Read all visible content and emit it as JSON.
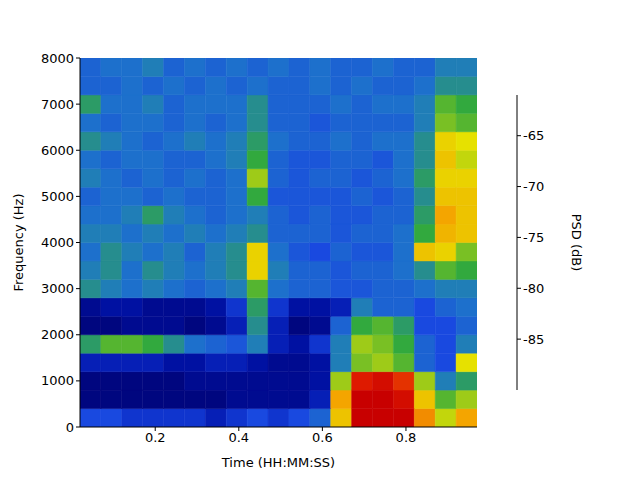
{
  "chart_data": {
    "type": "heatmap",
    "xlabel": "Time (HH:MM:SS)",
    "ylabel": "Frequency (Hz)",
    "xlim": [
      0.02,
      0.97
    ],
    "xticks": [
      0.2,
      0.4,
      0.6,
      0.8
    ],
    "ylim": [
      0,
      8000
    ],
    "yticks": [
      0,
      1000,
      2000,
      3000,
      4000,
      5000,
      6000,
      7000,
      8000
    ],
    "x_edges": [
      0.02,
      0.07,
      0.12,
      0.17,
      0.22,
      0.27,
      0.32,
      0.37,
      0.42,
      0.47,
      0.52,
      0.57,
      0.62,
      0.67,
      0.72,
      0.77,
      0.82,
      0.87,
      0.92,
      0.97
    ],
    "y_edges": [
      0,
      400,
      800,
      1200,
      1600,
      2000,
      2400,
      2800,
      3200,
      3600,
      4000,
      4400,
      4800,
      5200,
      5600,
      6000,
      6400,
      6800,
      7200,
      7600,
      8000
    ],
    "z": [
      [
        -84,
        -84,
        -85,
        -85,
        -85,
        -85,
        -86,
        -85,
        -84,
        -85,
        -84,
        -82,
        -70,
        -61,
        -61,
        -61,
        -67,
        -73,
        -68
      ],
      [
        -89,
        -89,
        -89,
        -89,
        -89,
        -89,
        -89,
        -88,
        -88,
        -88,
        -88,
        -86,
        -68,
        -61,
        -61,
        -62,
        -70,
        -76,
        -74
      ],
      [
        -89,
        -89,
        -89,
        -89,
        -89,
        -88,
        -88,
        -88,
        -88,
        -88,
        -88,
        -87,
        -74,
        -63,
        -62,
        -64,
        -74,
        -80,
        -78
      ],
      [
        -86,
        -86,
        -86,
        -86,
        -87,
        -87,
        -86,
        -86,
        -87,
        -88,
        -88,
        -87,
        -80,
        -75,
        -74,
        -76,
        -82,
        -84,
        -72
      ],
      [
        -78,
        -76,
        -76,
        -77,
        -79,
        -81,
        -82,
        -83,
        -80,
        -86,
        -87,
        -85,
        -80,
        -74,
        -75,
        -77,
        -82,
        -84,
        -80
      ],
      [
        -89,
        -89,
        -88,
        -88,
        -88,
        -89,
        -88,
        -86,
        -79,
        -86,
        -89,
        -88,
        -82,
        -77,
        -76,
        -78,
        -84,
        -84,
        -82
      ],
      [
        -88,
        -87,
        -87,
        -88,
        -88,
        -88,
        -87,
        -85,
        -78,
        -85,
        -87,
        -87,
        -86,
        -80,
        -82,
        -82,
        -84,
        -82,
        -81
      ],
      [
        -79,
        -80,
        -81,
        -80,
        -81,
        -82,
        -81,
        -80,
        -76,
        -81,
        -82,
        -82,
        -83,
        -83,
        -82,
        -82,
        -81,
        -80,
        -80
      ],
      [
        -80,
        -79,
        -81,
        -79,
        -80,
        -81,
        -80,
        -79,
        -71,
        -80,
        -82,
        -82,
        -83,
        -82,
        -82,
        -81,
        -79,
        -76,
        -77
      ],
      [
        -81,
        -79,
        -80,
        -81,
        -80,
        -82,
        -80,
        -79,
        -71,
        -81,
        -83,
        -84,
        -82,
        -83,
        -83,
        -81,
        -70,
        -71,
        -75
      ],
      [
        -80,
        -80,
        -81,
        -80,
        -81,
        -80,
        -81,
        -80,
        -79,
        -82,
        -82,
        -82,
        -83,
        -82,
        -82,
        -81,
        -77,
        -69,
        -70
      ],
      [
        -81,
        -81,
        -80,
        -78,
        -80,
        -81,
        -82,
        -81,
        -80,
        -82,
        -83,
        -82,
        -83,
        -83,
        -82,
        -82,
        -78,
        -68,
        -70
      ],
      [
        -82,
        -81,
        -81,
        -82,
        -81,
        -82,
        -82,
        -81,
        -77,
        -83,
        -83,
        -83,
        -83,
        -82,
        -83,
        -82,
        -79,
        -70,
        -70
      ],
      [
        -80,
        -81,
        -82,
        -81,
        -82,
        -81,
        -82,
        -81,
        -74,
        -82,
        -83,
        -82,
        -82,
        -83,
        -82,
        -81,
        -78,
        -71,
        -71
      ],
      [
        -81,
        -82,
        -81,
        -81,
        -82,
        -82,
        -81,
        -80,
        -77,
        -82,
        -83,
        -83,
        -82,
        -82,
        -83,
        -81,
        -79,
        -70,
        -73
      ],
      [
        -79,
        -80,
        -81,
        -82,
        -81,
        -80,
        -81,
        -80,
        -78,
        -81,
        -82,
        -82,
        -81,
        -82,
        -81,
        -81,
        -79,
        -71,
        -72
      ],
      [
        -81,
        -82,
        -81,
        -81,
        -82,
        -81,
        -82,
        -81,
        -79,
        -82,
        -82,
        -83,
        -82,
        -82,
        -82,
        -82,
        -80,
        -75,
        -76
      ],
      [
        -78,
        -81,
        -81,
        -80,
        -82,
        -81,
        -81,
        -81,
        -79,
        -82,
        -82,
        -82,
        -81,
        -82,
        -81,
        -81,
        -80,
        -76,
        -77
      ],
      [
        -82,
        -82,
        -81,
        -82,
        -81,
        -82,
        -81,
        -82,
        -81,
        -82,
        -82,
        -81,
        -82,
        -81,
        -82,
        -82,
        -81,
        -79,
        -79
      ],
      [
        -82,
        -81,
        -81,
        -80,
        -82,
        -81,
        -82,
        -81,
        -82,
        -81,
        -82,
        -81,
        -82,
        -82,
        -81,
        -82,
        -82,
        -80,
        -80
      ]
    ],
    "colorbar": {
      "label": "PSD (dB)",
      "lim": [
        -90,
        -61
      ],
      "ticks": [
        -85,
        -80,
        -75,
        -70,
        -65
      ]
    }
  }
}
